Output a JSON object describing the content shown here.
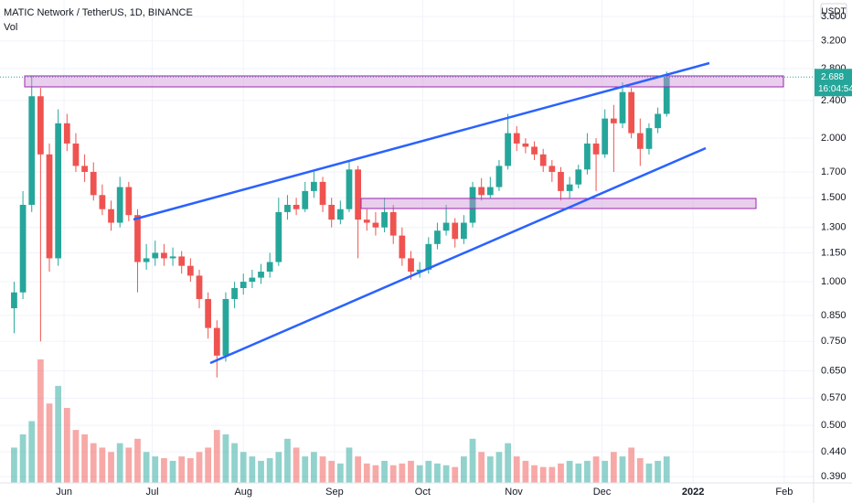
{
  "chart_data": {
    "type": "candlestick",
    "title": "MATIC Network / TetherUS, 1D, BINANCE",
    "volume_label": "Vol",
    "currency": "USDT",
    "countdown": "16:04:54",
    "last_price": 2.688,
    "log_scale": true,
    "up_color": "#26a69a",
    "down_color": "#ef5350",
    "xlim": [
      -21.8,
      255
    ],
    "xticks": [
      {
        "value": 0,
        "label": "Jun"
      },
      {
        "value": 30,
        "label": "Jul"
      },
      {
        "value": 61,
        "label": "Aug"
      },
      {
        "value": 92,
        "label": "Sep"
      },
      {
        "value": 122,
        "label": "Oct"
      },
      {
        "value": 153,
        "label": "Nov"
      },
      {
        "value": 183,
        "label": "Dec"
      },
      {
        "value": 214,
        "label": "2022"
      },
      {
        "value": 245,
        "label": "Feb"
      }
    ],
    "ylim": [
      0.359,
      3.9
    ],
    "yticks": [
      {
        "value": 0.39,
        "label": "0.390"
      },
      {
        "value": 0.44,
        "label": "0.440"
      },
      {
        "value": 0.5,
        "label": "0.500"
      },
      {
        "value": 0.57,
        "label": "0.570"
      },
      {
        "value": 0.65,
        "label": "0.650"
      },
      {
        "value": 0.75,
        "label": "0.750"
      },
      {
        "value": 0.85,
        "label": "0.850"
      },
      {
        "value": 1,
        "label": "1.000"
      },
      {
        "value": 1.15,
        "label": "1.150"
      },
      {
        "value": 1.3,
        "label": "1.300"
      },
      {
        "value": 1.5,
        "label": "1.500"
      },
      {
        "value": 1.7,
        "label": "1.700"
      },
      {
        "value": 2,
        "label": "2.000"
      },
      {
        "value": 2.4,
        "label": "2.400"
      },
      {
        "value": 2.8,
        "label": "2.800"
      },
      {
        "value": 3.2,
        "label": "3.200"
      },
      {
        "value": 3.6,
        "label": "3.600"
      }
    ],
    "x": [
      -17,
      -14,
      -11,
      -8,
      -5,
      -2,
      1,
      4,
      7,
      10,
      13,
      16,
      19,
      22,
      25,
      28,
      31,
      34,
      37,
      40,
      43,
      46,
      49,
      52,
      55,
      58,
      61,
      64,
      67,
      70,
      73,
      76,
      79,
      82,
      85,
      88,
      91,
      94,
      97,
      100,
      103,
      106,
      109,
      112,
      115,
      118,
      121,
      124,
      127,
      130,
      133,
      136,
      139,
      142,
      145,
      148,
      151,
      154,
      157,
      160,
      163,
      166,
      169,
      172,
      175,
      178,
      181,
      184,
      187,
      190,
      193,
      196,
      199,
      202,
      205
    ],
    "open": [
      0.88,
      0.95,
      1.45,
      2.45,
      1.85,
      1.12,
      2.15,
      1.95,
      1.75,
      1.7,
      1.52,
      1.42,
      1.33,
      1.58,
      1.38,
      1.1,
      1.12,
      1.15,
      1.12,
      1.13,
      1.08,
      1.03,
      0.92,
      0.8,
      0.7,
      0.92,
      0.97,
      1.0,
      1.02,
      1.05,
      1.1,
      1.4,
      1.45,
      1.42,
      1.55,
      1.62,
      1.45,
      1.35,
      1.42,
      1.72,
      1.35,
      1.33,
      1.3,
      1.4,
      1.25,
      1.12,
      1.05,
      1.06,
      1.2,
      1.28,
      1.33,
      1.23,
      1.33,
      1.58,
      1.52,
      1.58,
      1.75,
      2.05,
      1.95,
      1.92,
      1.85,
      1.75,
      1.7,
      1.55,
      1.6,
      1.72,
      1.95,
      1.85,
      2.2,
      2.15,
      2.5,
      2.05,
      1.9,
      2.1,
      2.25
    ],
    "high": [
      1.0,
      1.55,
      2.7,
      2.55,
      1.95,
      2.3,
      2.25,
      2.05,
      1.85,
      1.78,
      1.6,
      1.48,
      1.66,
      1.62,
      1.42,
      1.2,
      1.22,
      1.2,
      1.18,
      1.16,
      1.12,
      1.06,
      0.95,
      0.83,
      0.95,
      1.0,
      1.04,
      1.06,
      1.09,
      1.15,
      1.5,
      1.52,
      1.5,
      1.62,
      1.7,
      1.66,
      1.5,
      1.48,
      1.8,
      1.75,
      1.42,
      1.4,
      1.5,
      1.45,
      1.3,
      1.16,
      1.1,
      1.24,
      1.33,
      1.45,
      1.36,
      1.38,
      1.62,
      1.65,
      1.66,
      1.8,
      2.25,
      2.12,
      2.0,
      1.97,
      1.9,
      1.8,
      1.74,
      1.66,
      1.76,
      2.05,
      2.0,
      2.3,
      2.35,
      2.62,
      2.55,
      2.2,
      2.15,
      2.32,
      2.76
    ],
    "low": [
      0.78,
      0.92,
      1.4,
      0.75,
      1.05,
      1.08,
      1.88,
      1.7,
      1.62,
      1.48,
      1.38,
      1.28,
      1.3,
      1.34,
      0.95,
      1.06,
      1.08,
      1.08,
      1.08,
      1.04,
      1.0,
      0.88,
      0.76,
      0.63,
      0.68,
      0.88,
      0.94,
      0.97,
      0.99,
      1.02,
      1.08,
      1.35,
      1.38,
      1.4,
      1.5,
      1.4,
      1.3,
      1.32,
      1.4,
      1.12,
      1.28,
      1.25,
      1.27,
      1.2,
      1.08,
      1.01,
      1.02,
      1.04,
      1.17,
      1.25,
      1.18,
      1.2,
      1.3,
      1.48,
      1.5,
      1.55,
      1.72,
      1.88,
      1.86,
      1.8,
      1.7,
      1.62,
      1.48,
      1.5,
      1.57,
      1.68,
      1.55,
      1.82,
      1.7,
      2.1,
      2.0,
      1.75,
      1.85,
      2.05,
      2.22
    ],
    "close": [
      0.95,
      1.45,
      2.45,
      1.85,
      1.12,
      2.15,
      1.95,
      1.75,
      1.7,
      1.52,
      1.42,
      1.33,
      1.58,
      1.38,
      1.1,
      1.12,
      1.15,
      1.12,
      1.13,
      1.08,
      1.03,
      0.92,
      0.8,
      0.7,
      0.92,
      0.97,
      1.0,
      1.02,
      1.05,
      1.1,
      1.4,
      1.45,
      1.42,
      1.55,
      1.62,
      1.45,
      1.35,
      1.42,
      1.72,
      1.35,
      1.33,
      1.3,
      1.4,
      1.25,
      1.12,
      1.05,
      1.06,
      1.2,
      1.28,
      1.33,
      1.23,
      1.33,
      1.58,
      1.52,
      1.58,
      1.75,
      2.05,
      1.95,
      1.92,
      1.85,
      1.75,
      1.7,
      1.55,
      1.6,
      1.72,
      1.95,
      1.85,
      2.2,
      2.15,
      2.5,
      2.05,
      1.9,
      2.1,
      2.25,
      2.688
    ],
    "volume": [
      40,
      55,
      70,
      140,
      90,
      110,
      85,
      60,
      55,
      45,
      40,
      35,
      45,
      40,
      50,
      35,
      30,
      28,
      25,
      30,
      28,
      35,
      40,
      60,
      55,
      45,
      35,
      30,
      25,
      28,
      35,
      50,
      40,
      30,
      35,
      30,
      25,
      22,
      40,
      30,
      22,
      20,
      25,
      20,
      22,
      25,
      20,
      25,
      22,
      20,
      18,
      30,
      50,
      35,
      30,
      35,
      45,
      30,
      25,
      20,
      18,
      18,
      22,
      25,
      22,
      25,
      30,
      25,
      35,
      30,
      40,
      28,
      22,
      25,
      30
    ]
  }
}
